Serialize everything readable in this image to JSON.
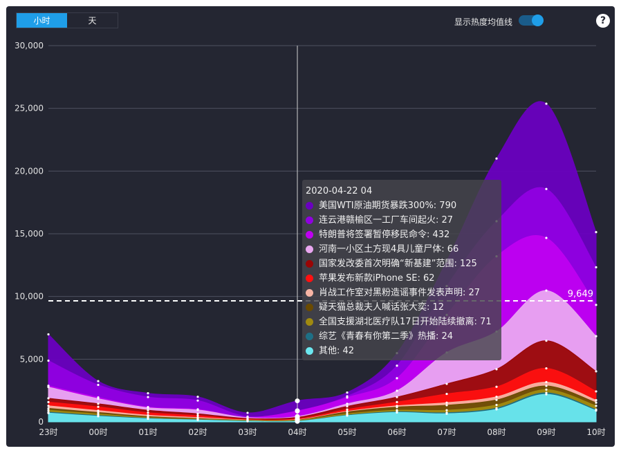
{
  "controls": {
    "tab_hour": "小时",
    "tab_day": "天",
    "toggle_label": "显示热度均值线",
    "help_label": "?"
  },
  "chart_data": {
    "type": "area",
    "stacked": true,
    "x": [
      "23时",
      "00时",
      "01时",
      "02时",
      "03时",
      "04时",
      "05时",
      "06时",
      "07时",
      "08时",
      "09时",
      "10时"
    ],
    "ylim": [
      0,
      30000
    ],
    "yticks": [
      "0",
      "5,000",
      "10,000",
      "15,000",
      "20,000",
      "25,000",
      "30,000"
    ],
    "grid": true,
    "series": [
      {
        "name": "其他",
        "color": "#6ce8f0",
        "values": [
          700,
          450,
          250,
          150,
          50,
          42,
          500,
          750,
          650,
          1000,
          2200,
          900
        ]
      },
      {
        "name": "综艺《青春有你第二季》热播",
        "color": "#1e6f86",
        "values": [
          80,
          60,
          40,
          30,
          20,
          24,
          40,
          60,
          80,
          100,
          120,
          80
        ]
      },
      {
        "name": "全国支援湖北医疗队17日开始陆续撤离",
        "color": "#a08a10",
        "values": [
          150,
          120,
          60,
          40,
          50,
          71,
          100,
          120,
          200,
          250,
          250,
          300
        ]
      },
      {
        "name": "疑天猫总裁夫人喊话张大奕",
        "color": "#6a4a00",
        "values": [
          150,
          120,
          80,
          50,
          10,
          12,
          150,
          250,
          400,
          400,
          300,
          250
        ]
      },
      {
        "name": "肖战工作室对黑粉造谣事件发表声明",
        "color": "#f7b4a4",
        "values": [
          200,
          150,
          100,
          80,
          20,
          27,
          50,
          100,
          200,
          250,
          300,
          200
        ]
      },
      {
        "name": "苹果发布新款iPhone SE",
        "color": "#ff1010",
        "values": [
          300,
          300,
          200,
          150,
          40,
          62,
          150,
          300,
          700,
          800,
          1100,
          700
        ]
      },
      {
        "name": "国家发改委首次明确“新基建”范围",
        "color": "#9a0505",
        "values": [
          300,
          250,
          200,
          150,
          80,
          125,
          250,
          400,
          800,
          1400,
          2200,
          1600
        ]
      },
      {
        "name": "河南一小区土方现4具儿童尸体",
        "color": "#e9a6f0",
        "values": [
          900,
          400,
          200,
          300,
          70,
          66,
          200,
          500,
          2500,
          3000,
          4000,
          2800
        ]
      },
      {
        "name": "特朗普将签署暂停移民命令",
        "color": "#bf00f0",
        "values": [
          100,
          100,
          50,
          50,
          30,
          432,
          500,
          1000,
          3000,
          6000,
          4200,
          2500
        ]
      },
      {
        "name": "连云港赣榆区一工厂车间起火",
        "color": "#9000e0",
        "values": [
          2000,
          1000,
          800,
          700,
          50,
          27,
          100,
          1000,
          2300,
          2800,
          3900,
          3000
        ]
      },
      {
        "name": "美国WTI原油期货暴跌300%",
        "color": "#6a00c0",
        "values": [
          2100,
          300,
          300,
          300,
          300,
          790,
          300,
          1000,
          2000,
          5000,
          6800,
          2800
        ]
      }
    ],
    "mean_line": {
      "value": 9649,
      "label": "9,649"
    },
    "tooltip": {
      "title": "2020-04-22 04",
      "x_index": 5,
      "rows": [
        "美国WTI原油期货暴跌300%: 790",
        "连云港赣榆区一工厂车间起火: 27",
        "特朗普将签署暂停移民命令: 432",
        "河南一小区土方现4具儿童尸体: 66",
        "国家发改委首次明确“新基建”范围: 125",
        "苹果发布新款iPhone SE: 62",
        "肖战工作室对黑粉造谣事件发表声明: 27",
        "疑天猫总裁夫人喊话张大奕: 12",
        "全国支援湖北医疗队17日开始陆续撤离: 71",
        "综艺《青春有你第二季》热播: 24",
        "其他: 42"
      ],
      "row_colors": [
        "#6a00c0",
        "#9000e0",
        "#bf00f0",
        "#e9a6f0",
        "#9a0505",
        "#ff1010",
        "#f7b4a4",
        "#6a4a00",
        "#a08a10",
        "#1e6f86",
        "#6ce8f0"
      ]
    }
  }
}
